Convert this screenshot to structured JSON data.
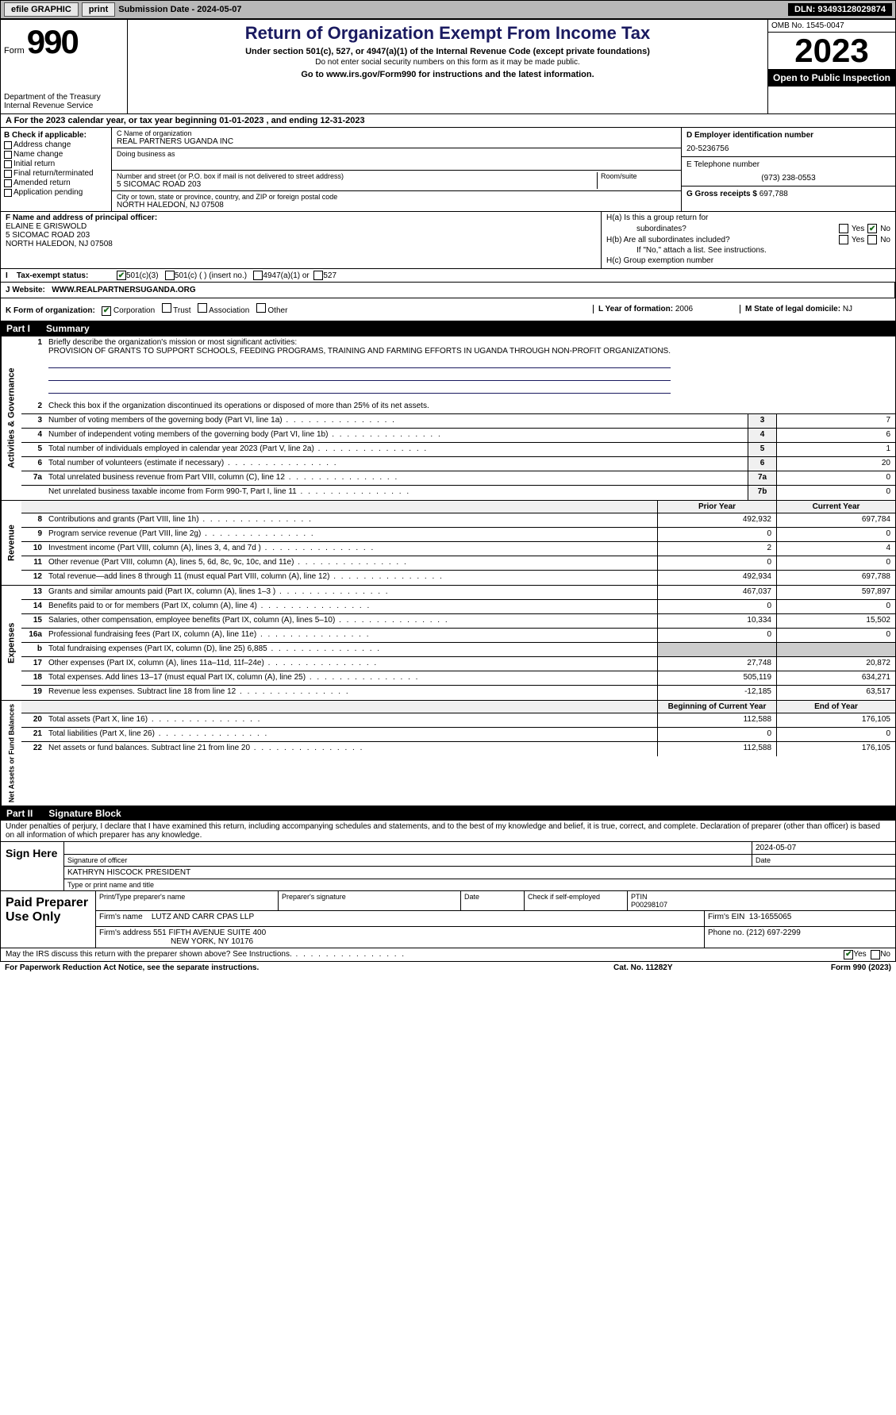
{
  "toolbar": {
    "efile_label": "efile GRAPHIC",
    "print_label": "print",
    "submission_label": "Submission Date - 2024-05-07",
    "dln_label": "DLN: 93493128029874"
  },
  "header": {
    "form_label": "Form",
    "form_number": "990",
    "dept": "Department of the Treasury",
    "irs": "Internal Revenue Service",
    "title": "Return of Organization Exempt From Income Tax",
    "subtitle": "Under section 501(c), 527, or 4947(a)(1) of the Internal Revenue Code (except private foundations)",
    "note": "Do not enter social security numbers on this form as it may be made public.",
    "link_text": "Go to www.irs.gov/Form990 for instructions and the latest information.",
    "omb": "OMB No. 1545-0047",
    "year": "2023",
    "inspection": "Open to Public Inspection"
  },
  "section_a": "A   For the 2023 calendar year, or tax year beginning 01-01-2023    , and ending 12-31-2023",
  "section_b": {
    "title": "B Check if applicable:",
    "items": [
      "Address change",
      "Name change",
      "Initial return",
      "Final return/terminated",
      "Amended return",
      "Application pending"
    ]
  },
  "section_c": {
    "name_label": "C Name of organization",
    "name": "REAL PARTNERS UGANDA INC",
    "dba_label": "Doing business as",
    "dba": "",
    "addr_label": "Number and street (or P.O. box if mail is not delivered to street address)",
    "addr": "5 SICOMAC ROAD 203",
    "suite_label": "Room/suite",
    "city_label": "City or town, state or province, country, and ZIP or foreign postal code",
    "city": "NORTH HALEDON, NJ  07508"
  },
  "section_d": {
    "label": "D Employer identification number",
    "val": "20-5236756"
  },
  "section_e": {
    "label": "E Telephone number",
    "val": "(973) 238-0553"
  },
  "section_g": {
    "label": "G Gross receipts $",
    "val": "697,788"
  },
  "section_f": {
    "label": "F  Name and address of principal officer:",
    "name": "ELAINE E GRISWOLD",
    "addr1": "5 SICOMAC ROAD 203",
    "addr2": "NORTH HALEDON, NJ  07508"
  },
  "section_h": {
    "ha": "H(a)  Is this a group return for",
    "ha2": "subordinates?",
    "hb": "H(b)  Are all subordinates included?",
    "hb_note": "If \"No,\" attach a list. See instructions.",
    "hc": "H(c)  Group exemption number",
    "yes": "Yes",
    "no": "No"
  },
  "tax_status": {
    "label": "Tax-exempt status:",
    "opts": [
      "501(c)(3)",
      "501(c) (  ) (insert no.)",
      "4947(a)(1) or",
      "527"
    ]
  },
  "website": {
    "label": "J   Website:",
    "url": "WWW.REALPARTNERSUGANDA.ORG"
  },
  "form_org": {
    "k_label": "K Form of organization:",
    "opts": [
      "Corporation",
      "Trust",
      "Association",
      "Other"
    ],
    "l_label": "L Year of formation:",
    "l_val": "2006",
    "m_label": "M State of legal domicile:",
    "m_val": "NJ"
  },
  "part1": {
    "num": "Part I",
    "title": "Summary"
  },
  "summary": {
    "gov_label": "Activities & Governance",
    "rev_label": "Revenue",
    "exp_label": "Expenses",
    "net_label": "Net Assets or Fund Balances",
    "line1_label": "Briefly describe the organization's mission or most significant activities:",
    "mission": "PROVISION OF GRANTS TO SUPPORT SCHOOLS, FEEDING PROGRAMS, TRAINING AND FARMING EFFORTS IN UGANDA THROUGH NON-PROFIT ORGANIZATIONS.",
    "line2": "Check this box       if the organization discontinued its operations or disposed of more than 25% of its net assets.",
    "lines_gov": [
      {
        "n": "3",
        "d": "Number of voting members of the governing body (Part VI, line 1a)",
        "box": "3",
        "v": "7"
      },
      {
        "n": "4",
        "d": "Number of independent voting members of the governing body (Part VI, line 1b)",
        "box": "4",
        "v": "6"
      },
      {
        "n": "5",
        "d": "Total number of individuals employed in calendar year 2023 (Part V, line 2a)",
        "box": "5",
        "v": "1"
      },
      {
        "n": "6",
        "d": "Total number of volunteers (estimate if necessary)",
        "box": "6",
        "v": "20"
      },
      {
        "n": "7a",
        "d": "Total unrelated business revenue from Part VIII, column (C), line 12",
        "box": "7a",
        "v": "0"
      },
      {
        "n": "",
        "d": "Net unrelated business taxable income from Form 990-T, Part I, line 11",
        "box": "7b",
        "v": "0"
      }
    ],
    "prior_label": "Prior Year",
    "current_label": "Current Year",
    "lines_rev": [
      {
        "n": "8",
        "d": "Contributions and grants (Part VIII, line 1h)",
        "p": "492,932",
        "c": "697,784"
      },
      {
        "n": "9",
        "d": "Program service revenue (Part VIII, line 2g)",
        "p": "0",
        "c": "0"
      },
      {
        "n": "10",
        "d": "Investment income (Part VIII, column (A), lines 3, 4, and 7d )",
        "p": "2",
        "c": "4"
      },
      {
        "n": "11",
        "d": "Other revenue (Part VIII, column (A), lines 5, 6d, 8c, 9c, 10c, and 11e)",
        "p": "0",
        "c": "0"
      },
      {
        "n": "12",
        "d": "Total revenue—add lines 8 through 11 (must equal Part VIII, column (A), line 12)",
        "p": "492,934",
        "c": "697,788"
      }
    ],
    "lines_exp": [
      {
        "n": "13",
        "d": "Grants and similar amounts paid (Part IX, column (A), lines 1–3 )",
        "p": "467,037",
        "c": "597,897"
      },
      {
        "n": "14",
        "d": "Benefits paid to or for members (Part IX, column (A), line 4)",
        "p": "0",
        "c": "0"
      },
      {
        "n": "15",
        "d": "Salaries, other compensation, employee benefits (Part IX, column (A), lines 5–10)",
        "p": "10,334",
        "c": "15,502"
      },
      {
        "n": "16a",
        "d": "Professional fundraising fees (Part IX, column (A), line 11e)",
        "p": "0",
        "c": "0"
      },
      {
        "n": "b",
        "d": "Total fundraising expenses (Part IX, column (D), line 25) 6,885",
        "p": "",
        "c": "",
        "grey": true
      },
      {
        "n": "17",
        "d": "Other expenses (Part IX, column (A), lines 11a–11d, 11f–24e)",
        "p": "27,748",
        "c": "20,872"
      },
      {
        "n": "18",
        "d": "Total expenses. Add lines 13–17 (must equal Part IX, column (A), line 25)",
        "p": "505,119",
        "c": "634,271"
      },
      {
        "n": "19",
        "d": "Revenue less expenses. Subtract line 18 from line 12",
        "p": "-12,185",
        "c": "63,517"
      }
    ],
    "begin_label": "Beginning of Current Year",
    "end_label": "End of Year",
    "lines_net": [
      {
        "n": "20",
        "d": "Total assets (Part X, line 16)",
        "p": "112,588",
        "c": "176,105"
      },
      {
        "n": "21",
        "d": "Total liabilities (Part X, line 26)",
        "p": "0",
        "c": "0"
      },
      {
        "n": "22",
        "d": "Net assets or fund balances. Subtract line 21 from line 20",
        "p": "112,588",
        "c": "176,105"
      }
    ]
  },
  "part2": {
    "num": "Part II",
    "title": "Signature Block"
  },
  "sig": {
    "intro": "Under penalties of perjury, I declare that I have examined this return, including accompanying schedules and statements, and to the best of my knowledge and belief, it is true, correct, and complete. Declaration of preparer (other than officer) is based on all information of which preparer has any knowledge.",
    "sign_here": "Sign Here",
    "date": "2024-05-07",
    "sig_label": "Signature of officer",
    "date_label": "Date",
    "officer": "KATHRYN HISCOCK  PRESIDENT",
    "type_label": "Type or print name and title"
  },
  "preparer": {
    "label": "Paid Preparer Use Only",
    "name_label": "Print/Type preparer's name",
    "sig_label": "Preparer's signature",
    "date_label": "Date",
    "check_label": "Check        if self-employed",
    "ptin_label": "PTIN",
    "ptin": "P00298107",
    "firm_name_label": "Firm's name",
    "firm_name": "LUTZ AND CARR CPAS LLP",
    "firm_ein_label": "Firm's EIN",
    "firm_ein": "13-1655065",
    "firm_addr_label": "Firm's address",
    "firm_addr1": "551 FIFTH AVENUE SUITE 400",
    "firm_addr2": "NEW YORK, NY  10176",
    "phone_label": "Phone no.",
    "phone": "(212) 697-2299"
  },
  "discuss": {
    "text": "May the IRS discuss this return with the preparer shown above? See Instructions.",
    "yes": "Yes",
    "no": "No"
  },
  "footer": {
    "left": "For Paperwork Reduction Act Notice, see the separate instructions.",
    "mid": "Cat. No. 11282Y",
    "right": "Form 990 (2023)"
  }
}
